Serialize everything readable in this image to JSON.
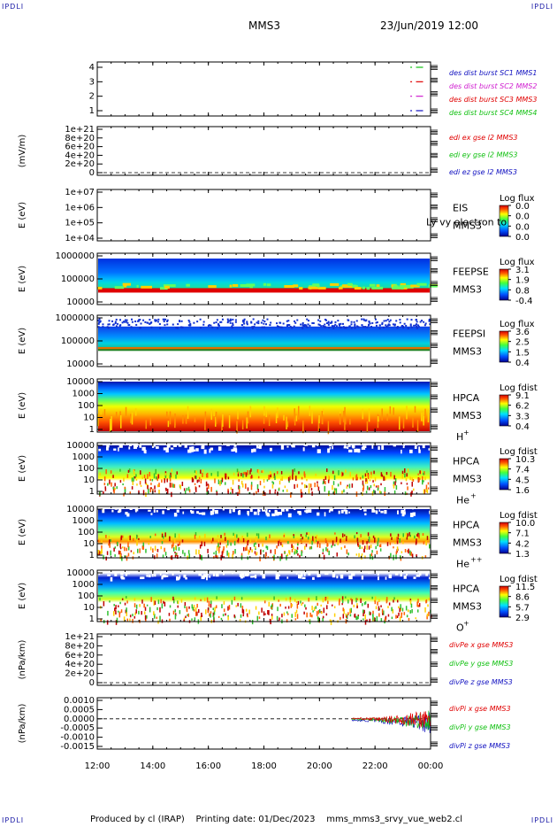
{
  "corners": {
    "tl": "IPDLI",
    "tr": "IPDLI",
    "bl": "IPDLI",
    "br": "IPDLI"
  },
  "header": {
    "mission": "MMS3",
    "datetime": "23/Jun/2019 12:00"
  },
  "footer": {
    "text": "Produced by cl (IRAP)    Printing date: 01/Dec/2023    mms_mms3_srvy_vue_web2.cl"
  },
  "colors": {
    "mms1": "#1010c0",
    "mms2": "#d020d0",
    "mms3": "#e00000",
    "mms4": "#10c010",
    "x": "#e00000",
    "y": "#10c010",
    "z": "#1010c0"
  },
  "chart_data": {
    "type": "multi-panel time series",
    "x_axis": {
      "range": [
        "12:00",
        "00:00"
      ],
      "ticks": [
        "12:00",
        "14:00",
        "16:00",
        "18:00",
        "20:00",
        "22:00",
        "00:00"
      ]
    },
    "panels": [
      {
        "id": "burst",
        "type": "scatter",
        "yticks": [
          "4",
          "3",
          "2",
          "1"
        ],
        "ylim": [
          0.5,
          4.5
        ],
        "series": [
          {
            "name": "des dist burst SC1 MMS1",
            "y": 1
          },
          {
            "name": "des dist burst SC2 MMS2",
            "y": 2
          },
          {
            "name": "des dist burst SC3 MMS3",
            "y": 3
          },
          {
            "name": "des dist burst SC4 MMS4",
            "y": 4
          }
        ],
        "segments_x": [
          "23:20",
          "23:40"
        ]
      },
      {
        "id": "edi",
        "type": "line",
        "ylabel": "(mV/m)",
        "yticks": [
          "1e+21",
          "8e+20",
          "6e+20",
          "4e+20",
          "2e+20",
          "0"
        ],
        "series": [
          {
            "name": "edi ex gse l2 MMS3"
          },
          {
            "name": "edi ey gse l2 MMS3"
          },
          {
            "name": "edi ez gse l2 MMS3"
          }
        ]
      },
      {
        "id": "eis",
        "type": "heatmap",
        "ylabel": "E (eV)",
        "yticks": [
          "1e+07",
          "1e+06",
          "1e+05",
          "1e+04"
        ],
        "label": [
          "EIS",
          "MMS3"
        ],
        "overlay": "Ly vy electron to",
        "cbar_title": "Log flux",
        "cbar_ticks": [
          "0.0",
          "0.0",
          "0.0",
          "0.0"
        ]
      },
      {
        "id": "feepse",
        "type": "heatmap",
        "ylabel": "E (eV)",
        "yticks": [
          "1000000",
          "100000",
          "10000"
        ],
        "label": [
          "FEEPSE",
          "MMS3"
        ],
        "cbar_title": "Log flux",
        "cbar_ticks": [
          "3.1",
          "1.9",
          "0.8",
          "-0.4"
        ]
      },
      {
        "id": "feepsi",
        "type": "heatmap",
        "ylabel": "E (eV)",
        "yticks": [
          "1000000",
          "100000",
          "10000"
        ],
        "label": [
          "FEEPSI",
          "MMS3"
        ],
        "cbar_title": "Log flux",
        "cbar_ticks": [
          "3.6",
          "2.5",
          "1.5",
          "0.4"
        ]
      },
      {
        "id": "hpca_h",
        "type": "heatmap",
        "ylabel": "E (eV)",
        "yticks": [
          "10000",
          "1000",
          "100",
          "10",
          "1"
        ],
        "label": [
          "HPCA",
          "MMS3"
        ],
        "species": "H",
        "charge": "+",
        "cbar_title": "Log fdist",
        "cbar_ticks": [
          "9.1",
          "6.2",
          "3.3",
          "0.4"
        ]
      },
      {
        "id": "hpca_he",
        "type": "heatmap",
        "ylabel": "E (eV)",
        "yticks": [
          "10000",
          "1000",
          "100",
          "10",
          "1"
        ],
        "label": [
          "HPCA",
          "MMS3"
        ],
        "species": "He",
        "charge": "+",
        "cbar_title": "Log fdist",
        "cbar_ticks": [
          "10.3",
          "7.4",
          "4.5",
          "1.6"
        ]
      },
      {
        "id": "hpca_hepp",
        "type": "heatmap",
        "ylabel": "E (eV)",
        "yticks": [
          "10000",
          "1000",
          "100",
          "10",
          "1"
        ],
        "label": [
          "HPCA",
          "MMS3"
        ],
        "species": "He",
        "charge": "++",
        "cbar_title": "Log fdist",
        "cbar_ticks": [
          "10.0",
          "7.1",
          "4.2",
          "1.3"
        ]
      },
      {
        "id": "hpca_o",
        "type": "heatmap",
        "ylabel": "E (eV)",
        "yticks": [
          "10000",
          "1000",
          "100",
          "10",
          "1"
        ],
        "label": [
          "HPCA",
          "MMS3"
        ],
        "species": "O",
        "charge": "+",
        "cbar_title": "Log fdist",
        "cbar_ticks": [
          "11.5",
          "8.6",
          "5.7",
          "2.9"
        ]
      },
      {
        "id": "divpe",
        "type": "line",
        "ylabel": "(nPa/km)",
        "yticks": [
          "1e+21",
          "8e+20",
          "6e+20",
          "4e+20",
          "2e+20",
          "0"
        ],
        "series": [
          {
            "name": "divPe x gse MMS3"
          },
          {
            "name": "divPe y gse MMS3"
          },
          {
            "name": "divPe z gse MMS3"
          }
        ]
      },
      {
        "id": "divpi",
        "type": "line",
        "ylabel": "(nPa/km)",
        "yticks": [
          "0.0010",
          "0.0005",
          "0.0000",
          "-0.0005",
          "-0.0010",
          "-0.0015"
        ],
        "ylim": [
          -0.0017,
          0.0011
        ],
        "data_start": "21:10",
        "series": [
          {
            "name": "divPi x gse MMS3"
          },
          {
            "name": "divPi y gse MMS3"
          },
          {
            "name": "divPi z gse MMS3"
          }
        ]
      }
    ]
  }
}
